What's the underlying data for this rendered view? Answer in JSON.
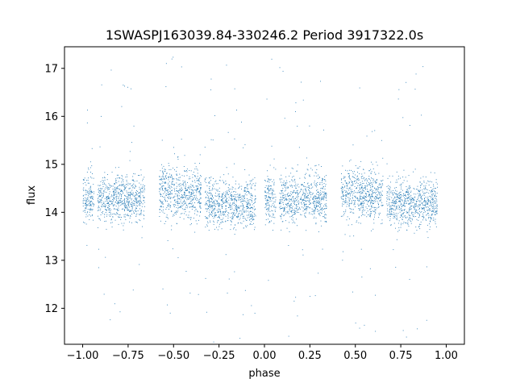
{
  "chart_data": {
    "type": "scatter",
    "title": "1SWASPJ163039.84-330246.2 Period 3917322.0s",
    "xlabel": "phase",
    "ylabel": "flux",
    "xlim": [
      -1.1,
      1.1
    ],
    "ylim": [
      11.25,
      17.45
    ],
    "xticks": [
      -1.0,
      -0.75,
      -0.5,
      -0.25,
      0.0,
      0.25,
      0.5,
      0.75,
      1.0
    ],
    "xtick_labels": [
      "−1.00",
      "−0.75",
      "−0.50",
      "−0.25",
      "0.00",
      "0.25",
      "0.50",
      "0.75",
      "1.00"
    ],
    "yticks": [
      12,
      13,
      14,
      15,
      16,
      17
    ],
    "ytick_labels": [
      "12",
      "13",
      "14",
      "15",
      "16",
      "17"
    ],
    "grid": false,
    "point_color": "#1f77b4",
    "series": [
      {
        "points_description_clusters": [
          {
            "x_start": -1.0,
            "x_end": -0.94,
            "y_center": 14.3,
            "y_spread": 0.5
          },
          {
            "x_start": -0.92,
            "x_end": -0.66,
            "y_center": 14.3,
            "y_spread": 0.45
          },
          {
            "x_start": -0.58,
            "x_end": -0.35,
            "y_center": 14.4,
            "y_spread": 0.5
          },
          {
            "x_start": -0.33,
            "x_end": -0.05,
            "y_center": 14.2,
            "y_spread": 0.45
          },
          {
            "x_start": 0.0,
            "x_end": 0.06,
            "y_center": 14.3,
            "y_spread": 0.5
          },
          {
            "x_start": 0.08,
            "x_end": 0.34,
            "y_center": 14.3,
            "y_spread": 0.45
          },
          {
            "x_start": 0.42,
            "x_end": 0.65,
            "y_center": 14.4,
            "y_spread": 0.5
          },
          {
            "x_start": 0.67,
            "x_end": 0.95,
            "y_center": 14.2,
            "y_spread": 0.45
          }
        ]
      }
    ]
  }
}
